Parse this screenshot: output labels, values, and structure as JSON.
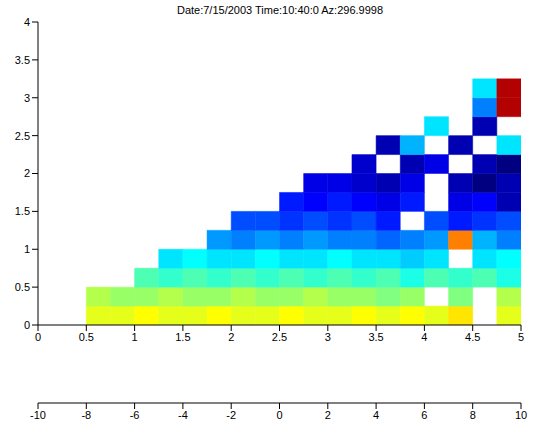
{
  "chart_data": {
    "type": "heatmap",
    "title": "Date:7/15/2003 Time:10:40:0 Az:296.9998",
    "xlim": [
      0,
      5
    ],
    "xticks": [
      0,
      0.5,
      1,
      1.5,
      2,
      2.5,
      3,
      3.5,
      4,
      4.5,
      5
    ],
    "ylim": [
      0,
      4
    ],
    "yticks": [
      0,
      0.5,
      1,
      1.5,
      2,
      2.5,
      3,
      3.5,
      4
    ],
    "x_bins": [
      0.5,
      0.75,
      1,
      1.25,
      1.5,
      1.75,
      2,
      2.25,
      2.5,
      2.75,
      3,
      3.25,
      3.5,
      3.75,
      4,
      4.25,
      4.5,
      4.75,
      5
    ],
    "y_bins": [
      0,
      0.25,
      0.5,
      0.75,
      1,
      1.25,
      1.5,
      1.75,
      2,
      2.25,
      2.5,
      2.75,
      3,
      3.25
    ],
    "values": [
      [
        2,
        2,
        2.5,
        2,
        2,
        2.5,
        2,
        2,
        2.5,
        2,
        2,
        2.5,
        2,
        2.5,
        2,
        3,
        null,
        2
      ],
      [
        1,
        0.5,
        0.5,
        1,
        0.5,
        0.5,
        1,
        0.5,
        0.5,
        1,
        0.5,
        0.5,
        0,
        0.5,
        null,
        0,
        null,
        1
      ],
      [
        null,
        null,
        -1,
        -1.5,
        -1,
        -1.5,
        -1,
        -1.5,
        -1,
        -1.5,
        -1,
        -1.5,
        -1,
        -2,
        -1,
        -1.5,
        -1,
        -2
      ],
      [
        null,
        null,
        null,
        -3,
        -2.5,
        -3,
        -3,
        -2.5,
        -3,
        -3,
        -2.5,
        -3,
        -3,
        -3.5,
        -3,
        null,
        -3,
        -2.5
      ],
      [
        null,
        null,
        null,
        null,
        null,
        -4.5,
        -5,
        -4.5,
        -5,
        -4.5,
        -5,
        -5,
        -5.5,
        -5,
        -4.5,
        5,
        -4,
        -5
      ],
      [
        null,
        null,
        null,
        null,
        null,
        null,
        -6,
        -6,
        -6.5,
        -6,
        -6.5,
        -6,
        -7,
        null,
        -6,
        -7,
        -6.5,
        -6
      ],
      [
        null,
        null,
        null,
        null,
        null,
        null,
        null,
        null,
        -7,
        -7.5,
        -7,
        -7.5,
        -8,
        -7,
        null,
        -8,
        -7.5,
        -9
      ],
      [
        null,
        null,
        null,
        null,
        null,
        null,
        null,
        null,
        null,
        -8,
        -8,
        -8.5,
        -9,
        -8,
        null,
        -9,
        -10,
        -9
      ],
      [
        null,
        null,
        null,
        null,
        null,
        null,
        null,
        null,
        null,
        null,
        null,
        -8.5,
        null,
        -9,
        -8,
        null,
        -9,
        -10
      ],
      [
        null,
        null,
        null,
        null,
        null,
        null,
        null,
        null,
        null,
        null,
        null,
        null,
        -9,
        -4,
        null,
        -9,
        null,
        -3
      ],
      [
        null,
        null,
        null,
        null,
        null,
        null,
        null,
        null,
        null,
        null,
        null,
        null,
        null,
        null,
        -3,
        null,
        -9,
        null
      ],
      [
        null,
        null,
        null,
        null,
        null,
        null,
        null,
        null,
        null,
        null,
        null,
        null,
        null,
        null,
        null,
        null,
        -5,
        9
      ],
      [
        null,
        null,
        null,
        null,
        null,
        null,
        null,
        null,
        null,
        null,
        null,
        null,
        null,
        null,
        null,
        null,
        -3,
        9
      ]
    ],
    "colorbar": {
      "lim": [
        -10,
        10
      ],
      "ticks": [
        -10,
        -8,
        -6,
        -4,
        -2,
        0,
        2,
        4,
        6,
        8,
        10
      ]
    }
  }
}
